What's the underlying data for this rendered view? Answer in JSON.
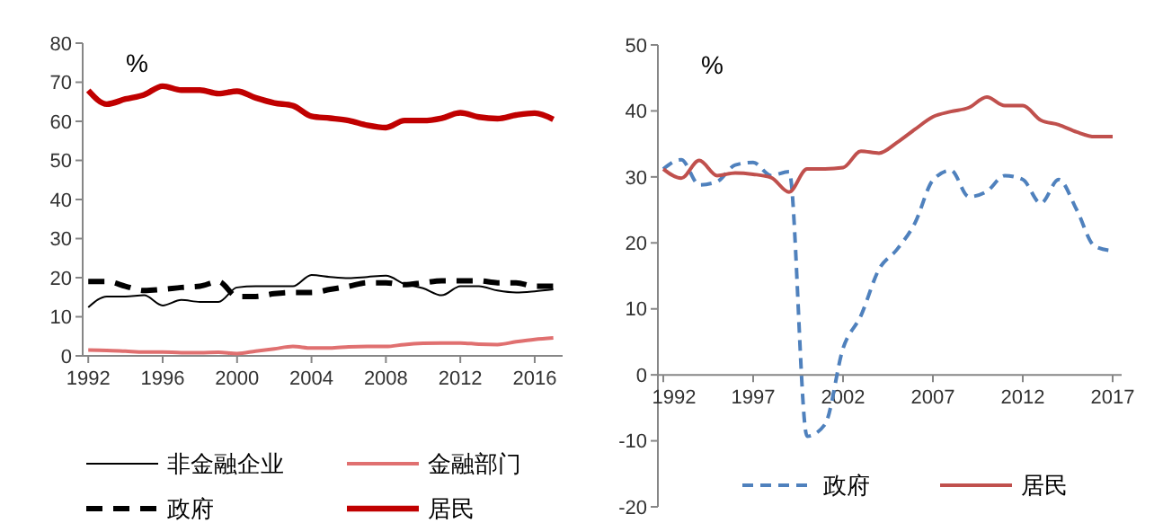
{
  "chart_data": [
    {
      "type": "line",
      "ylabel": "%",
      "x": [
        1992,
        1993,
        1994,
        1995,
        1996,
        1997,
        1998,
        1999,
        2000,
        2001,
        2002,
        2003,
        2004,
        2005,
        2006,
        2007,
        2008,
        2009,
        2010,
        2011,
        2012,
        2013,
        2014,
        2015,
        2016,
        2017
      ],
      "xlim": [
        1991.7,
        2017.5
      ],
      "xticks": [
        1992,
        1996,
        2000,
        2004,
        2008,
        2012,
        2016
      ],
      "ylim": [
        0,
        80
      ],
      "yticks": [
        0,
        10,
        20,
        30,
        40,
        50,
        60,
        70,
        80
      ],
      "grid": false,
      "legend": "bottom",
      "marker": "none",
      "series": [
        {
          "name": "非金融企业",
          "color": "#000000",
          "line_style": "solid",
          "values": [
            12.4,
            15.2,
            15.2,
            15.5,
            12.9,
            14.3,
            13.8,
            13.8,
            17.5,
            17.8,
            17.8,
            17.8,
            20.7,
            20.2,
            19.9,
            20.2,
            20.5,
            18.4,
            17.3,
            15.5,
            17.8,
            17.8,
            16.7,
            16.2,
            16.5,
            17
          ]
        },
        {
          "name": "金融部门",
          "color": "#e07070",
          "line_style": "solid",
          "values": [
            1.5,
            1.4,
            1.2,
            1,
            1,
            0.8,
            0.8,
            0.9,
            0.6,
            1.2,
            1.8,
            2.4,
            2,
            2,
            2.3,
            2.4,
            2.4,
            2.9,
            3.2,
            3.3,
            3.3,
            3,
            2.9,
            3.6,
            4.2,
            4.6
          ]
        },
        {
          "name": "政府",
          "color": "#000000",
          "line_style": "dashed",
          "values": [
            19,
            19,
            17.8,
            16.7,
            17,
            17.5,
            17.8,
            19,
            15.2,
            15.2,
            15.9,
            16.2,
            16.2,
            17,
            17.8,
            18.7,
            18.7,
            18.2,
            18.7,
            19.2,
            19.2,
            19.2,
            18.7,
            18.7,
            17.8,
            17.8
          ]
        },
        {
          "name": "居民",
          "color": "#c00000",
          "line_style": "solid",
          "values": [
            67.9,
            64.4,
            65.7,
            66.8,
            69,
            68,
            68,
            67.1,
            67.7,
            66,
            64.7,
            64,
            61.3,
            60.8,
            60.2,
            59,
            58.4,
            60.2,
            60.2,
            60.8,
            62.2,
            61.1,
            60.7,
            61.6,
            62.1,
            60.5
          ]
        }
      ]
    },
    {
      "type": "line",
      "ylabel": "%",
      "x": [
        1992,
        1993,
        1994,
        1995,
        1996,
        1997,
        1998,
        1999,
        2000,
        2001,
        2002,
        2003,
        2004,
        2005,
        2006,
        2007,
        2008,
        2009,
        2010,
        2011,
        2012,
        2013,
        2014,
        2015,
        2016,
        2017
      ],
      "xlim": [
        1991.7,
        2017.5
      ],
      "xticks": [
        1992,
        1997,
        2002,
        2007,
        2012,
        2017
      ],
      "ylim": [
        -20,
        50
      ],
      "yticks": [
        -20,
        -10,
        0,
        10,
        20,
        30,
        40,
        50
      ],
      "grid": false,
      "legend": "bottom",
      "marker": "none",
      "series": [
        {
          "name": "政府",
          "color": "#4f81bd",
          "line_style": "dashed",
          "values": [
            31.2,
            32.6,
            28.8,
            29.3,
            31.8,
            32.2,
            30.2,
            30.8,
            -9.3,
            -7.5,
            4,
            9,
            16,
            19,
            23,
            29.5,
            31,
            27,
            27.8,
            30.2,
            29.6,
            26,
            29.6,
            25,
            19.5,
            18.8
          ]
        },
        {
          "name": "居民",
          "color": "#c0504d",
          "line_style": "solid",
          "values": [
            31.2,
            29.8,
            32.5,
            30.2,
            30.6,
            30.4,
            29.9,
            27.7,
            31.2,
            31.2,
            31.4,
            33.9,
            33.6,
            35.2,
            37.2,
            39.1,
            39.9,
            40.5,
            42.1,
            40.8,
            40.8,
            38.6,
            37.9,
            36.8,
            36.1,
            36.1
          ]
        }
      ]
    }
  ]
}
